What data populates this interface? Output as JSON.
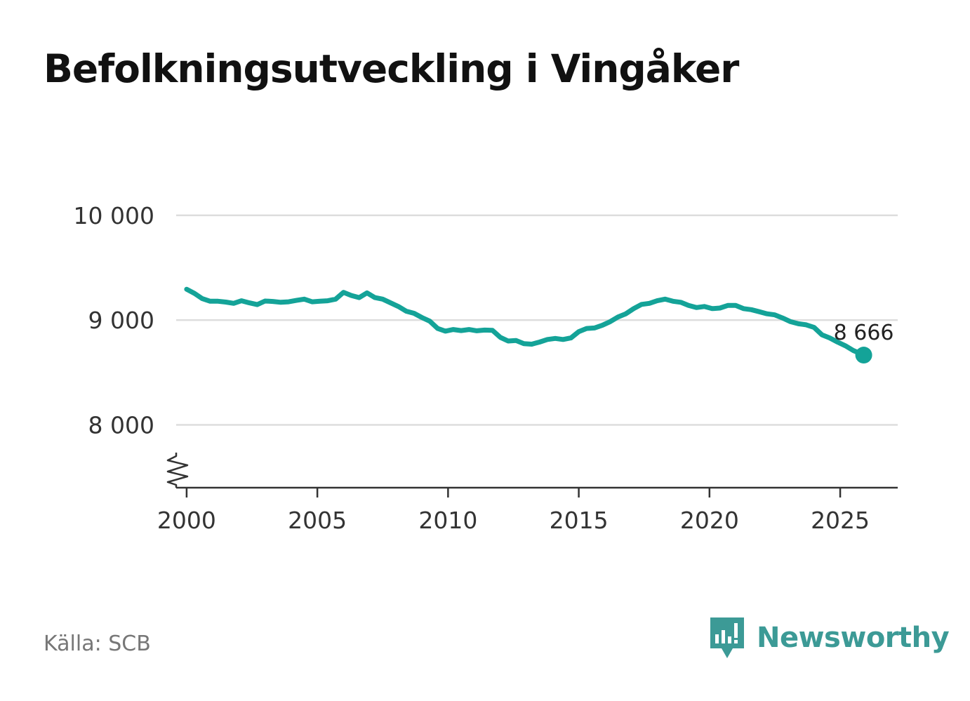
{
  "title": "Befolkningsutveckling i Vingåker",
  "source": "Källa: SCB",
  "brand": {
    "name": "Newsworthy",
    "logo_icon": "newsworthy-logo-icon"
  },
  "colors": {
    "line": "#14a398",
    "grid": "#dddddd",
    "axis": "#333333",
    "brand": "#3c9a96"
  },
  "chart_data": {
    "type": "line",
    "title": "Befolkningsutveckling i Vingåker",
    "xlabel": "",
    "ylabel": "",
    "xlim": [
      1999.6,
      2027.2
    ],
    "ylim": [
      7400,
      10100
    ],
    "y_axis_break": true,
    "grid": "horizontal",
    "xticks": [
      2000,
      2005,
      2010,
      2015,
      2020,
      2025
    ],
    "xtick_labels": [
      "2000",
      "2005",
      "2010",
      "2015",
      "2020",
      "2025"
    ],
    "yticks": [
      8000,
      9000,
      10000
    ],
    "ytick_labels": [
      "8 000",
      "9 000",
      "10 000"
    ],
    "end_label": "8 666",
    "series": [
      {
        "x": [
          2000.0,
          2000.3,
          2000.6,
          2000.9,
          2001.2,
          2001.5,
          2001.8,
          2002.1,
          2002.4,
          2002.7,
          2003.0,
          2003.3,
          2003.6,
          2003.9,
          2004.2,
          2004.5,
          2004.8,
          2005.1,
          2005.4,
          2005.7,
          2006.0,
          2006.3,
          2006.6,
          2006.9,
          2007.2,
          2007.5,
          2007.8,
          2008.1,
          2008.4,
          2008.7,
          2009.0,
          2009.3,
          2009.6,
          2009.9,
          2010.2,
          2010.5,
          2010.8,
          2011.1,
          2011.4,
          2011.7,
          2012.0,
          2012.3,
          2012.6,
          2012.9,
          2013.2,
          2013.5,
          2013.8,
          2014.1,
          2014.4,
          2014.7,
          2015.0,
          2015.3,
          2015.6,
          2015.9,
          2016.2,
          2016.5,
          2016.8,
          2017.1,
          2017.4,
          2017.7,
          2018.0,
          2018.3,
          2018.6,
          2018.9,
          2019.2,
          2019.5,
          2019.8,
          2020.1,
          2020.4,
          2020.7,
          2021.0,
          2021.3,
          2021.6,
          2021.9,
          2022.2,
          2022.5,
          2022.8,
          2023.1,
          2023.4,
          2023.7,
          2024.0,
          2024.3,
          2024.6,
          2024.9,
          2025.2,
          2025.5,
          2025.9
        ],
        "y": [
          9295,
          9255,
          9205,
          9180,
          9180,
          9172,
          9160,
          9185,
          9165,
          9148,
          9182,
          9178,
          9170,
          9175,
          9188,
          9200,
          9175,
          9180,
          9185,
          9200,
          9265,
          9235,
          9215,
          9260,
          9215,
          9200,
          9165,
          9130,
          9085,
          9065,
          9025,
          8990,
          8920,
          8895,
          8910,
          8900,
          8910,
          8898,
          8905,
          8902,
          8835,
          8800,
          8805,
          8775,
          8770,
          8790,
          8815,
          8825,
          8815,
          8830,
          8890,
          8920,
          8925,
          8950,
          8985,
          9030,
          9060,
          9110,
          9150,
          9160,
          9185,
          9200,
          9180,
          9170,
          9140,
          9120,
          9130,
          9110,
          9115,
          9140,
          9140,
          9110,
          9100,
          9080,
          9060,
          9050,
          9020,
          8985,
          8965,
          8955,
          8930,
          8860,
          8830,
          8790,
          8755,
          8710,
          8666
        ]
      }
    ]
  }
}
